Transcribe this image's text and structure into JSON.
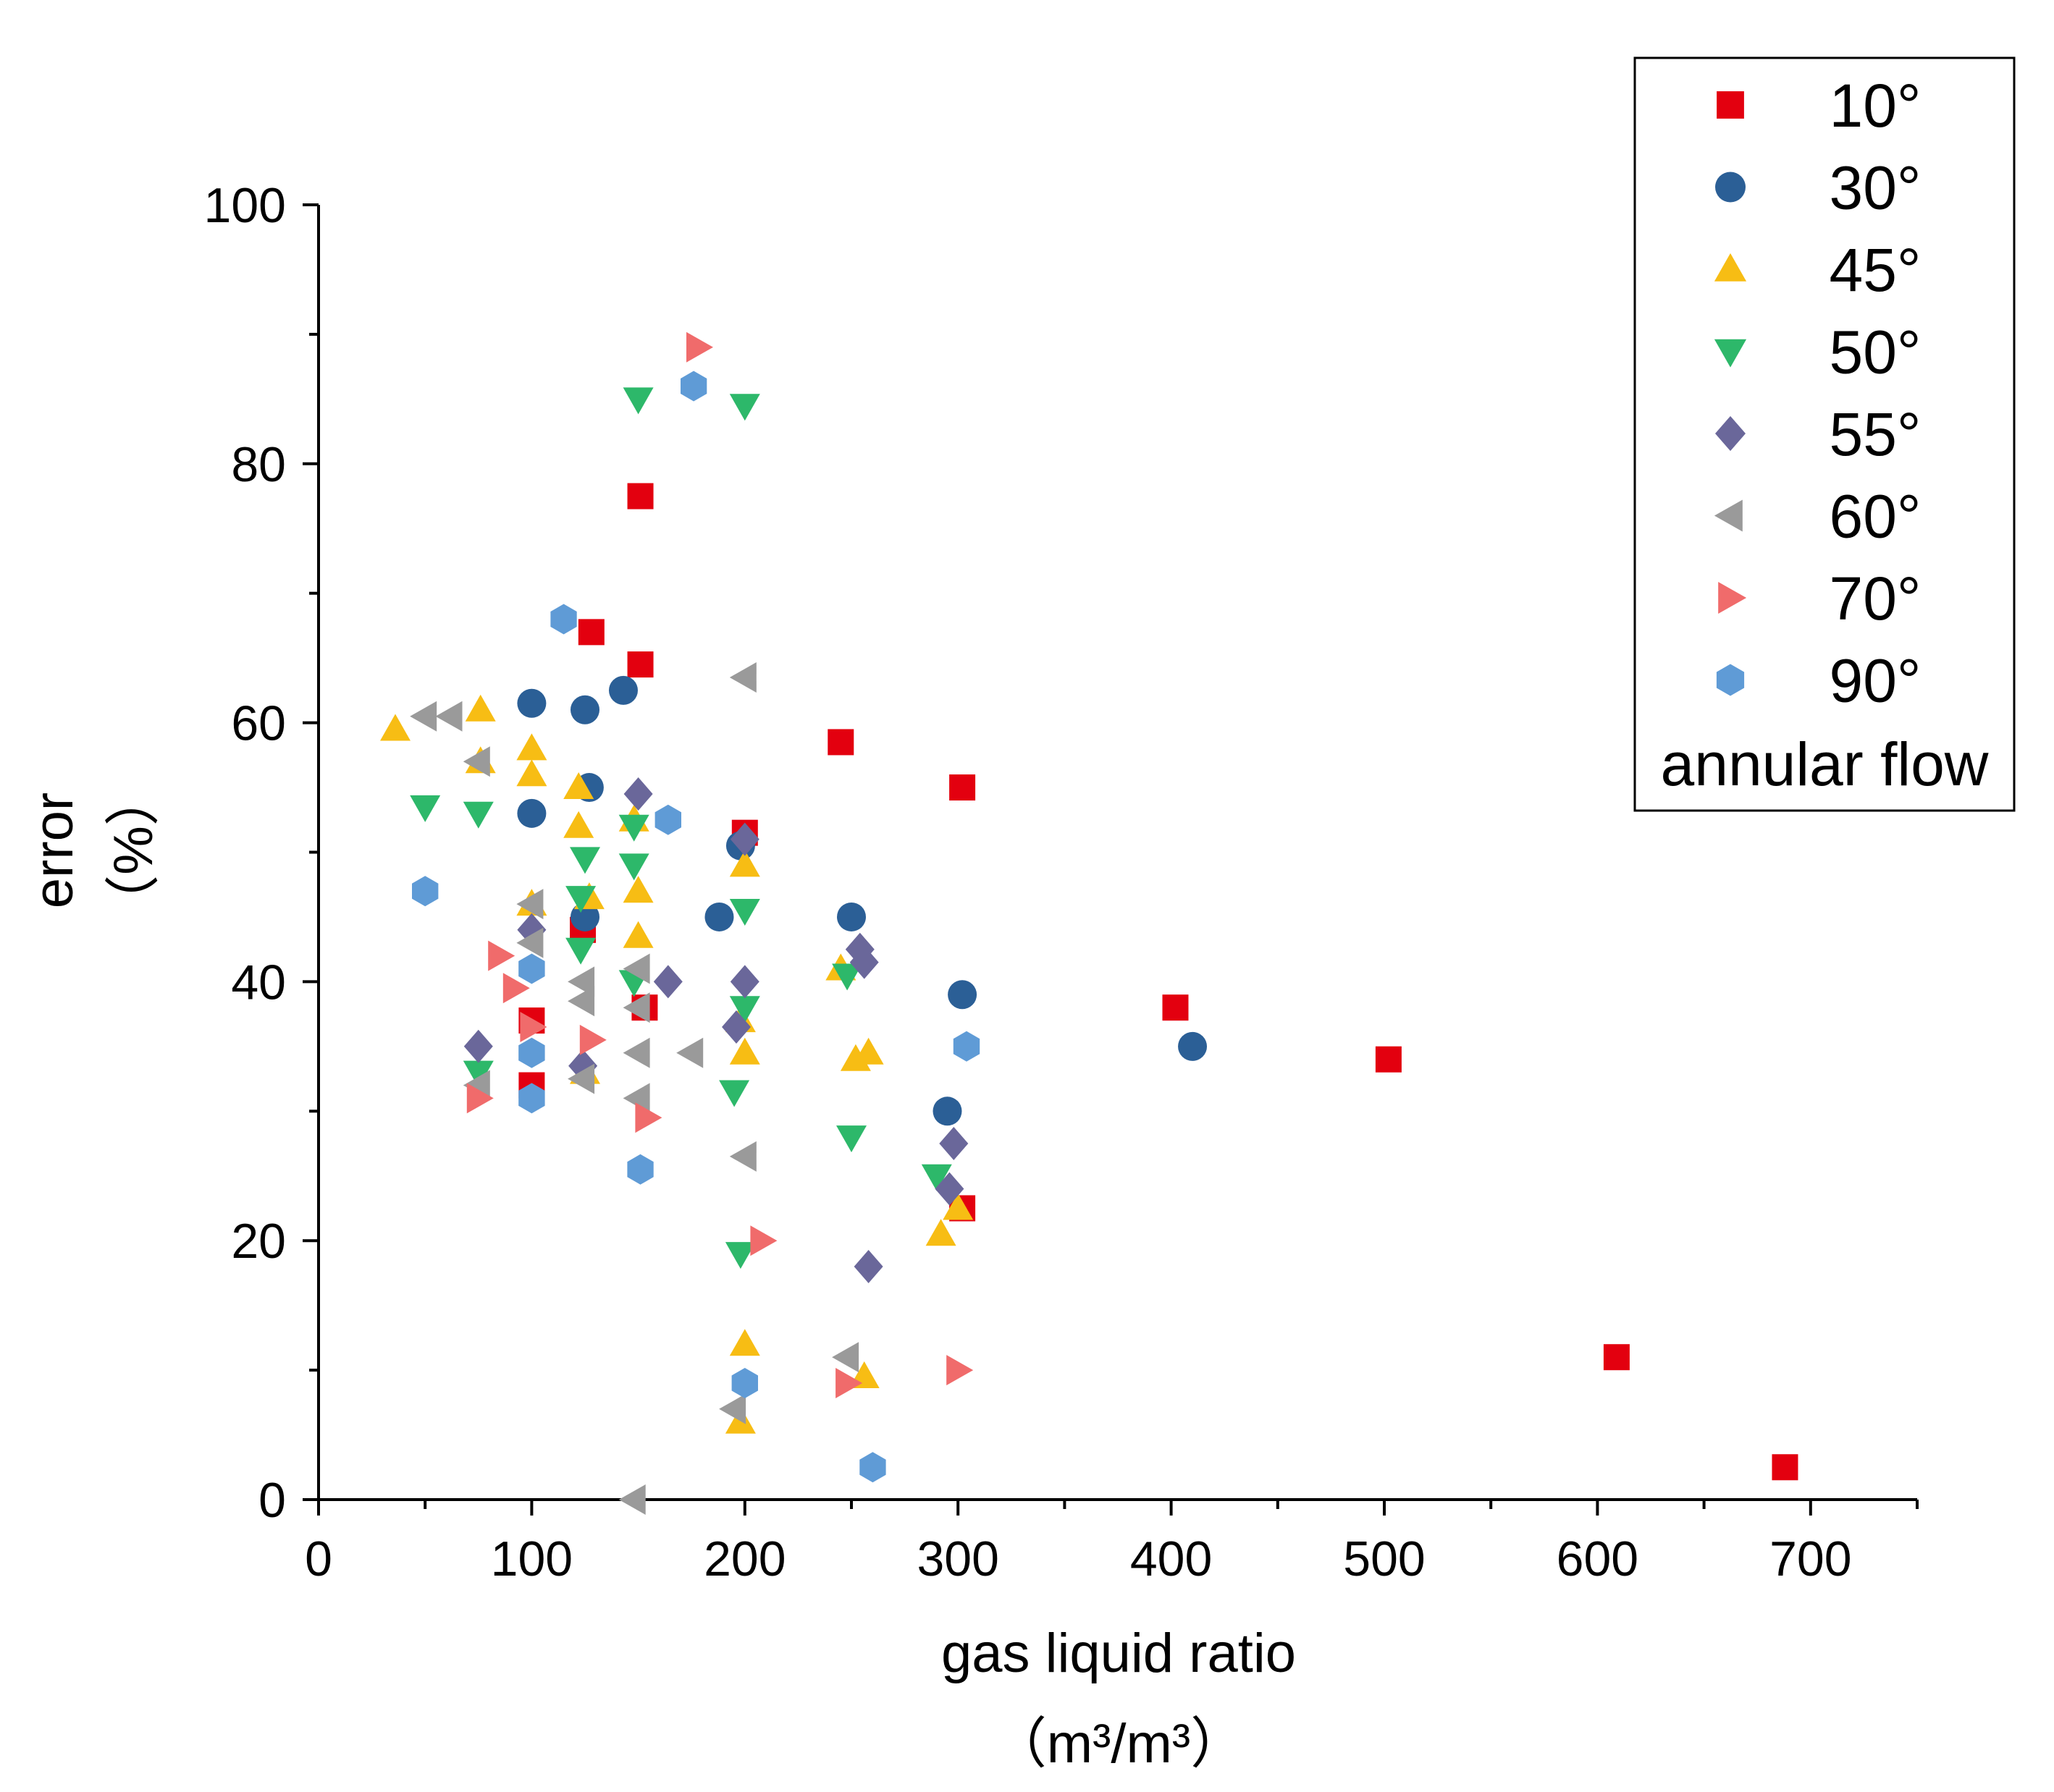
{
  "chart_data": {
    "type": "scatter",
    "title": "",
    "xlabel": "gas liquid ratio",
    "xlabel_unit": "（m³/m³）",
    "ylabel": "error",
    "ylabel_unit": "（%）",
    "xlim": [
      0,
      750
    ],
    "ylim": [
      0,
      100
    ],
    "x_ticks": [
      "0",
      "100",
      "200",
      "300",
      "400",
      "500",
      "600",
      "700"
    ],
    "y_ticks": [
      "0",
      "20",
      "40",
      "60",
      "80",
      "100"
    ],
    "legend_position": "top-right",
    "legend_title": "annular flow",
    "series": [
      {
        "name": "10°",
        "marker": "square",
        "color": "#e3000f",
        "points": [
          [
            128,
            67
          ],
          [
            151,
            77.5
          ],
          [
            151,
            64.5
          ],
          [
            124,
            44
          ],
          [
            100,
            37
          ],
          [
            100,
            32
          ],
          [
            153,
            38
          ],
          [
            200,
            51.5
          ],
          [
            245,
            58.5
          ],
          [
            302,
            55
          ],
          [
            302,
            22.5
          ],
          [
            402,
            38
          ],
          [
            502,
            34
          ],
          [
            609,
            11
          ],
          [
            688,
            2.5
          ]
        ]
      },
      {
        "name": "30°",
        "marker": "circle",
        "color": "#2b5f96",
        "points": [
          [
            100,
            61.5
          ],
          [
            125,
            61
          ],
          [
            143,
            62.5
          ],
          [
            100,
            53
          ],
          [
            127,
            55
          ],
          [
            125,
            45
          ],
          [
            188,
            45
          ],
          [
            198,
            50.5
          ],
          [
            250,
            45
          ],
          [
            302,
            39
          ],
          [
            295,
            30
          ],
          [
            410,
            35
          ]
        ]
      },
      {
        "name": "45°",
        "marker": "triangle-up",
        "color": "#f7bd14",
        "points": [
          [
            36,
            59.5
          ],
          [
            76,
            61
          ],
          [
            76,
            57
          ],
          [
            100,
            58
          ],
          [
            100,
            56
          ],
          [
            122,
            55
          ],
          [
            122,
            52
          ],
          [
            148,
            52.5
          ],
          [
            100,
            46
          ],
          [
            127,
            46.5
          ],
          [
            150,
            47
          ],
          [
            150,
            43.5
          ],
          [
            200,
            49
          ],
          [
            198,
            37
          ],
          [
            200,
            34.5
          ],
          [
            245,
            41
          ],
          [
            252,
            34
          ],
          [
            258,
            34.5
          ],
          [
            292,
            20.5
          ],
          [
            300,
            22.5
          ],
          [
            200,
            12
          ],
          [
            198,
            6
          ],
          [
            256,
            9.5
          ],
          [
            125,
            33
          ]
        ]
      },
      {
        "name": "50°",
        "marker": "triangle-down",
        "color": "#2db86a",
        "points": [
          [
            50,
            53.5
          ],
          [
            75,
            53
          ],
          [
            150,
            85
          ],
          [
            200,
            84.5
          ],
          [
            125,
            49.5
          ],
          [
            148,
            52
          ],
          [
            148,
            49
          ],
          [
            123,
            46.5
          ],
          [
            123,
            42.5
          ],
          [
            148,
            40
          ],
          [
            200,
            45.5
          ],
          [
            200,
            38
          ],
          [
            195,
            31.5
          ],
          [
            248,
            40.5
          ],
          [
            250,
            28
          ],
          [
            290,
            25
          ],
          [
            198,
            19
          ],
          [
            75,
            33
          ]
        ]
      },
      {
        "name": "55°",
        "marker": "diamond",
        "color": "#6a679a",
        "points": [
          [
            75,
            35
          ],
          [
            100,
            44
          ],
          [
            124,
            33.5
          ],
          [
            150,
            54.5
          ],
          [
            164,
            40
          ],
          [
            200,
            51
          ],
          [
            200,
            40
          ],
          [
            196,
            36.5
          ],
          [
            254,
            42.5
          ],
          [
            256,
            41.5
          ],
          [
            298,
            27.5
          ],
          [
            296,
            24
          ],
          [
            258,
            18
          ]
        ]
      },
      {
        "name": "60°",
        "marker": "triangle-left",
        "color": "#9a9a9a",
        "points": [
          [
            50,
            60.5
          ],
          [
            62,
            60.5
          ],
          [
            75,
            57
          ],
          [
            100,
            46
          ],
          [
            100,
            43
          ],
          [
            124,
            40
          ],
          [
            124,
            38.5
          ],
          [
            124,
            32.5
          ],
          [
            150,
            41
          ],
          [
            150,
            38
          ],
          [
            150,
            34.5
          ],
          [
            150,
            31
          ],
          [
            175,
            34.5
          ],
          [
            200,
            63.5
          ],
          [
            200,
            26.5
          ],
          [
            248,
            11
          ],
          [
            195,
            7
          ],
          [
            148,
            0
          ],
          [
            75,
            32
          ]
        ]
      },
      {
        "name": "70°",
        "marker": "triangle-right",
        "color": "#f06b6b",
        "points": [
          [
            178,
            89
          ],
          [
            85,
            42
          ],
          [
            92,
            39.5
          ],
          [
            100,
            36.5
          ],
          [
            128,
            35.5
          ],
          [
            75,
            31
          ],
          [
            154,
            29.5
          ],
          [
            208,
            20
          ],
          [
            248,
            9
          ],
          [
            300,
            10
          ]
        ]
      },
      {
        "name": "90°",
        "marker": "hexagon",
        "color": "#5f9bd6",
        "points": [
          [
            176,
            86
          ],
          [
            115,
            68
          ],
          [
            164,
            52.5
          ],
          [
            50,
            47
          ],
          [
            100,
            41
          ],
          [
            100,
            34.5
          ],
          [
            100,
            31
          ],
          [
            151,
            25.5
          ],
          [
            200,
            9
          ],
          [
            260,
            2.5
          ],
          [
            304,
            35
          ]
        ]
      }
    ]
  }
}
